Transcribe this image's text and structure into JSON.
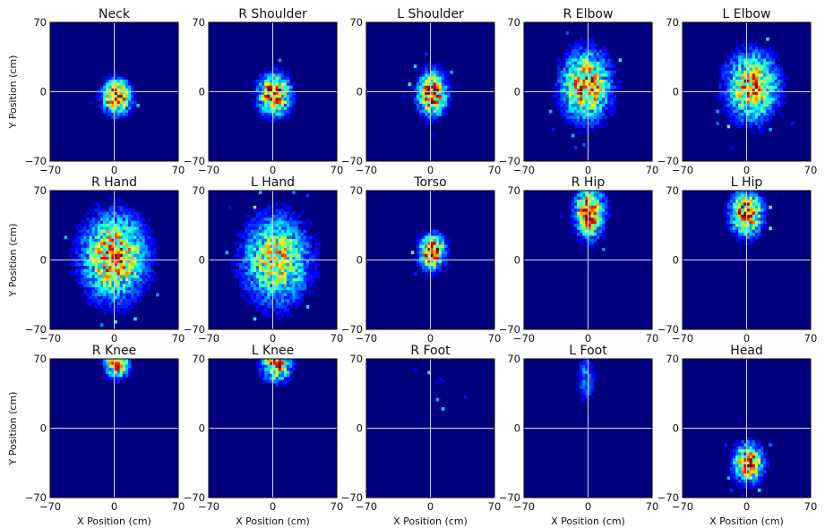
{
  "colors": {
    "background": "#00007f",
    "crosshair": "#cfd6e6",
    "colormap": "jet"
  },
  "chart_data": {
    "type": "heatmap",
    "layout": "3x5 grid of 2D histograms",
    "xlabel": "X Position (cm)",
    "ylabel": "Y Position (cm)",
    "xlim": [
      -70,
      70
    ],
    "ylim": [
      -70,
      70
    ],
    "x_ticks": [
      "−70",
      "0",
      "70"
    ],
    "y_ticks": [
      "70",
      "0",
      "−70"
    ],
    "colormap": "jet",
    "panels": [
      {
        "title": "Neck",
        "blobs": [
          {
            "cx": 3,
            "cy": -5,
            "sx": 10,
            "sy": 11,
            "w": 1.0
          }
        ]
      },
      {
        "title": "R Shoulder",
        "blobs": [
          {
            "cx": 2,
            "cy": -3,
            "sx": 11,
            "sy": 13,
            "w": 1.0
          }
        ]
      },
      {
        "title": "L Shoulder",
        "blobs": [
          {
            "cx": 2,
            "cy": -2,
            "sx": 10,
            "sy": 14,
            "w": 1.0
          }
        ]
      },
      {
        "title": "R Elbow",
        "blobs": [
          {
            "cx": -2,
            "cy": 6,
            "sx": 17,
            "sy": 22,
            "w": 0.85
          }
        ]
      },
      {
        "title": "L Elbow",
        "blobs": [
          {
            "cx": 6,
            "cy": 5,
            "sx": 18,
            "sy": 22,
            "w": 0.8
          }
        ]
      },
      {
        "title": "R Hand",
        "blobs": [
          {
            "cx": 0,
            "cy": 3,
            "sx": 22,
            "sy": 27,
            "w": 0.85
          }
        ]
      },
      {
        "title": "L Hand",
        "blobs": [
          {
            "cx": 4,
            "cy": 0,
            "sx": 23,
            "sy": 28,
            "w": 0.7
          }
        ]
      },
      {
        "title": "Torso",
        "blobs": [
          {
            "cx": 2,
            "cy": 8,
            "sx": 9,
            "sy": 11,
            "w": 1.0
          }
        ]
      },
      {
        "title": "R Hip",
        "blobs": [
          {
            "cx": 2,
            "cy": 48,
            "sx": 10,
            "sy": 16,
            "w": 1.0
          }
        ]
      },
      {
        "title": "L Hip",
        "blobs": [
          {
            "cx": 0,
            "cy": 47,
            "sx": 11,
            "sy": 14,
            "w": 1.0
          }
        ]
      },
      {
        "title": "R Knee",
        "blobs": [
          {
            "cx": 3,
            "cy": 65,
            "sx": 8,
            "sy": 9,
            "w": 0.9
          }
        ]
      },
      {
        "title": "L Knee",
        "blobs": [
          {
            "cx": 4,
            "cy": 64,
            "sx": 10,
            "sy": 10,
            "w": 0.9
          }
        ]
      },
      {
        "title": "R Foot",
        "blobs": [
          {
            "cx": 10,
            "cy": 45,
            "sx": 15,
            "sy": 20,
            "w": 0.08
          }
        ]
      },
      {
        "title": "L Foot",
        "blobs": [
          {
            "cx": -2,
            "cy": 50,
            "sx": 6,
            "sy": 15,
            "w": 0.3
          }
        ]
      },
      {
        "title": "Head",
        "blobs": [
          {
            "cx": 2,
            "cy": -35,
            "sx": 10,
            "sy": 12,
            "w": 1.0
          }
        ]
      }
    ]
  }
}
